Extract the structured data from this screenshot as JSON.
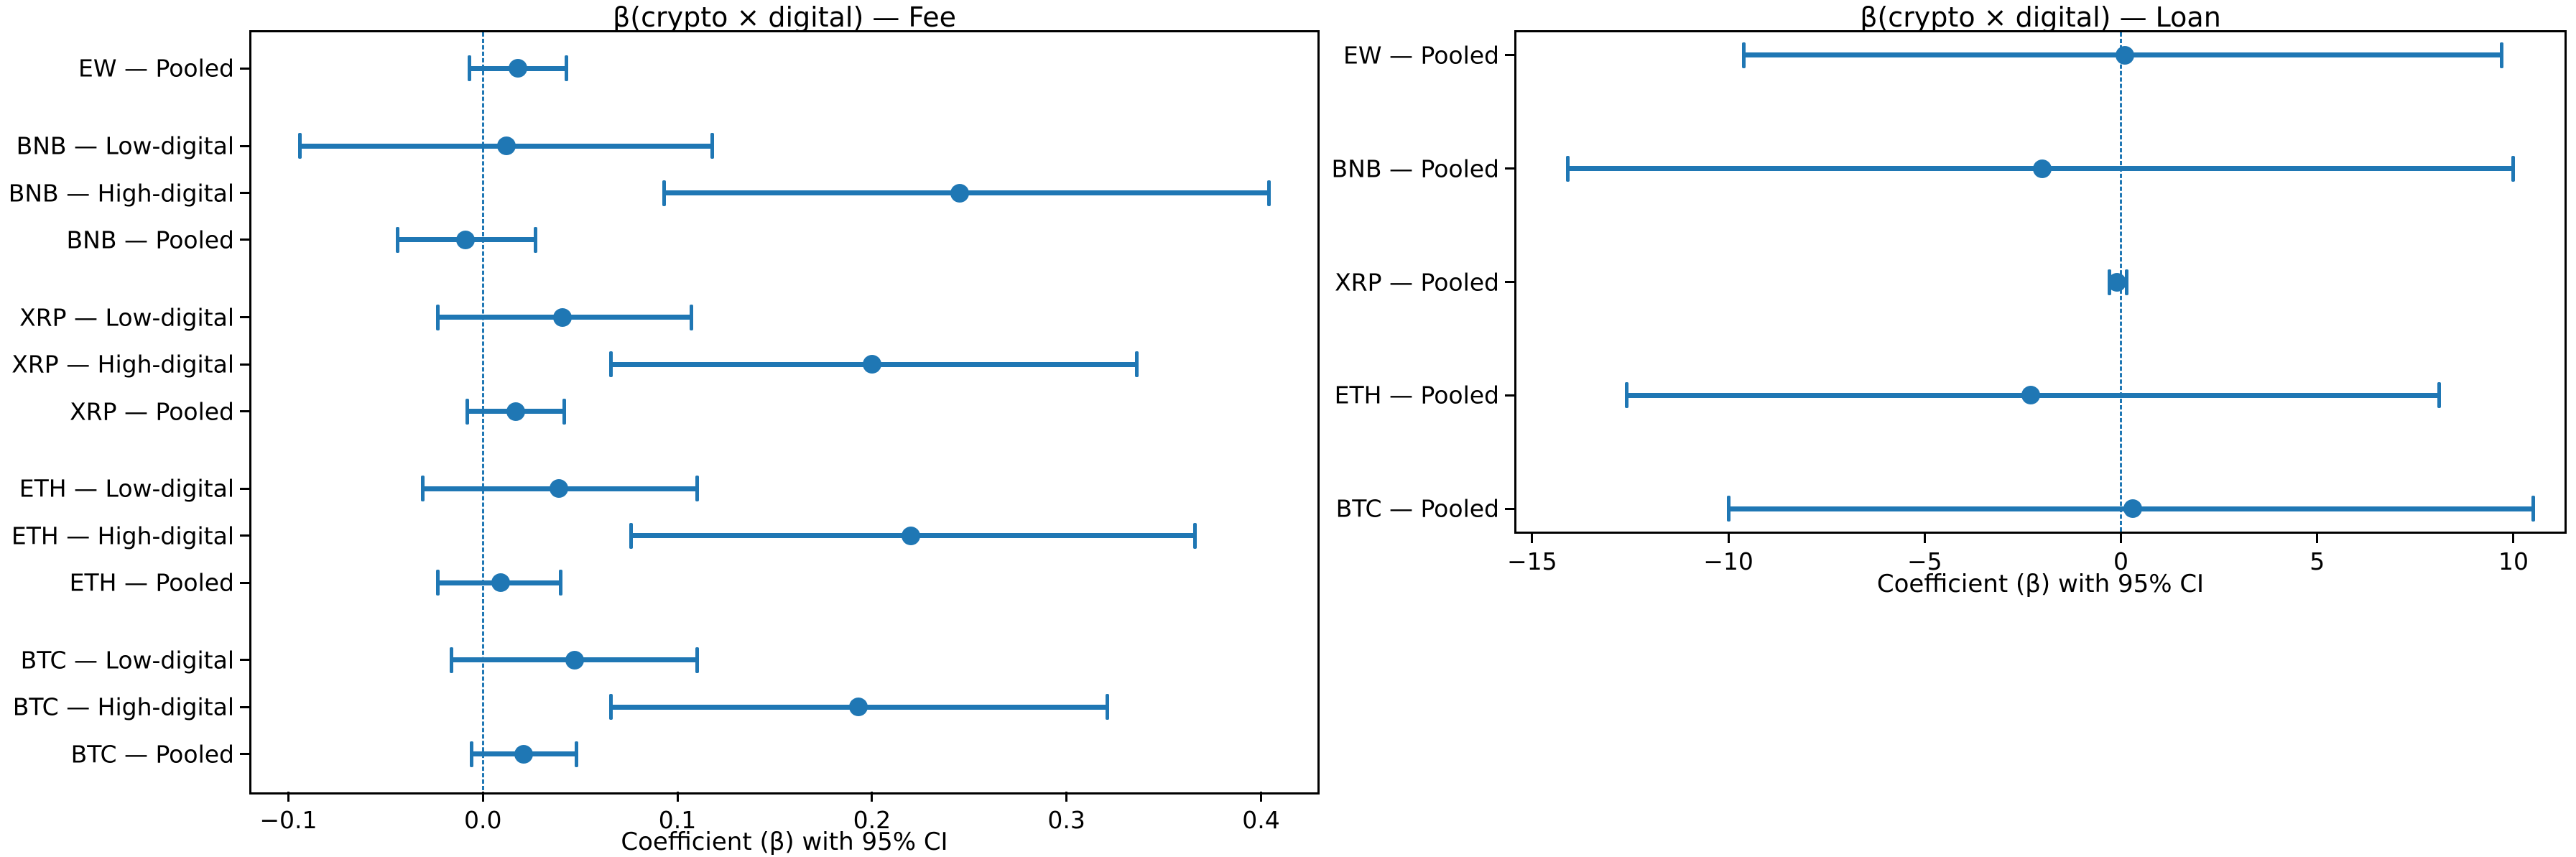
{
  "figure": {
    "background": "#ffffff",
    "accent_color": "#1f77b4",
    "spine_color": "#000000",
    "text_color": "#000000"
  },
  "chart_data": [
    {
      "type": "errorbar_horizontal",
      "title": "β(crypto × digital) — Fee",
      "xlabel": "Coefficient (β) with 95% CI",
      "xlim": [
        -0.119,
        0.429
      ],
      "xticks": [
        -0.1,
        0.0,
        0.1,
        0.2,
        0.3,
        0.4
      ],
      "xtick_labels": [
        "−0.1",
        "0.0",
        "0.1",
        "0.2",
        "0.3",
        "0.4"
      ],
      "zero_line_x": 0,
      "grid": false,
      "legend": null,
      "y_margin": 0.77,
      "rows": [
        {
          "label": "EW — Pooled",
          "y": 0.0,
          "beta": 0.018,
          "ci_low": -0.007,
          "ci_high": 0.043
        },
        {
          "label": "BNB — Low-digital",
          "y": 1.65,
          "beta": 0.012,
          "ci_low": -0.094,
          "ci_high": 0.118
        },
        {
          "label": "BNB — High-digital",
          "y": 2.65,
          "beta": 0.245,
          "ci_low": 0.093,
          "ci_high": 0.404
        },
        {
          "label": "BNB — Pooled",
          "y": 3.65,
          "beta": -0.009,
          "ci_low": -0.044,
          "ci_high": 0.027
        },
        {
          "label": "XRP — Low-digital",
          "y": 5.3,
          "beta": 0.041,
          "ci_low": -0.023,
          "ci_high": 0.107
        },
        {
          "label": "XRP — High-digital",
          "y": 6.3,
          "beta": 0.2,
          "ci_low": 0.066,
          "ci_high": 0.336
        },
        {
          "label": "XRP — Pooled",
          "y": 7.3,
          "beta": 0.017,
          "ci_low": -0.008,
          "ci_high": 0.042
        },
        {
          "label": "ETH — Low-digital",
          "y": 8.95,
          "beta": 0.039,
          "ci_low": -0.031,
          "ci_high": 0.11
        },
        {
          "label": "ETH — High-digital",
          "y": 9.95,
          "beta": 0.22,
          "ci_low": 0.076,
          "ci_high": 0.366
        },
        {
          "label": "ETH — Pooled",
          "y": 10.95,
          "beta": 0.009,
          "ci_low": -0.023,
          "ci_high": 0.04
        },
        {
          "label": "BTC — Low-digital",
          "y": 12.6,
          "beta": 0.047,
          "ci_low": -0.016,
          "ci_high": 0.11
        },
        {
          "label": "BTC — High-digital",
          "y": 13.6,
          "beta": 0.193,
          "ci_low": 0.066,
          "ci_high": 0.321
        },
        {
          "label": "BTC — Pooled",
          "y": 14.6,
          "beta": 0.021,
          "ci_low": -0.006,
          "ci_high": 0.048
        }
      ]
    },
    {
      "type": "errorbar_horizontal",
      "title": "β(crypto × digital) — Loan",
      "xlabel": "Coefficient (β) with 95% CI",
      "xlim": [
        -15.4,
        11.3
      ],
      "xticks": [
        -15,
        -10,
        -5,
        0,
        5,
        10
      ],
      "xtick_labels": [
        "−15",
        "−10",
        "−5",
        "0",
        "5",
        "10"
      ],
      "zero_line_x": 0,
      "grid": false,
      "legend": null,
      "y_margin": 0.2,
      "rows": [
        {
          "label": "EW — Pooled",
          "y": 0,
          "beta": 0.1,
          "ci_low": -9.6,
          "ci_high": 9.7
        },
        {
          "label": "BNB — Pooled",
          "y": 1,
          "beta": -2.0,
          "ci_low": -14.1,
          "ci_high": 10.0
        },
        {
          "label": "XRP — Pooled",
          "y": 2,
          "beta": -0.1,
          "ci_low": -0.3,
          "ci_high": 0.15
        },
        {
          "label": "ETH — Pooled",
          "y": 3,
          "beta": -2.3,
          "ci_low": -12.6,
          "ci_high": 8.1
        },
        {
          "label": "BTC — Pooled",
          "y": 4,
          "beta": 0.3,
          "ci_low": -10.0,
          "ci_high": 10.5
        }
      ]
    }
  ]
}
